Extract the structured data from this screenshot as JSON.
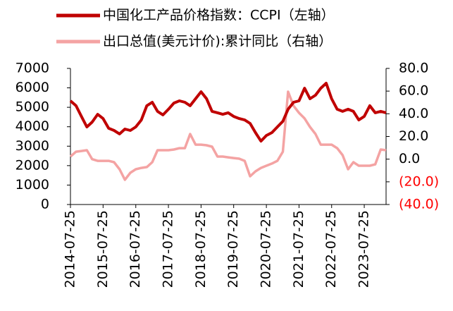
{
  "chart_data": {
    "type": "line",
    "x": [
      "2014-07-25",
      "2014-09-25",
      "2014-11-25",
      "2015-01-25",
      "2015-03-25",
      "2015-05-25",
      "2015-07-25",
      "2015-09-25",
      "2015-11-25",
      "2016-01-25",
      "2016-03-25",
      "2016-05-25",
      "2016-07-25",
      "2016-09-25",
      "2016-11-25",
      "2017-01-25",
      "2017-03-25",
      "2017-05-25",
      "2017-07-25",
      "2017-09-25",
      "2017-11-25",
      "2018-01-25",
      "2018-03-25",
      "2018-05-25",
      "2018-07-25",
      "2018-09-25",
      "2018-11-25",
      "2019-01-25",
      "2019-03-25",
      "2019-05-25",
      "2019-07-25",
      "2019-09-25",
      "2019-11-25",
      "2020-01-25",
      "2020-03-25",
      "2020-05-25",
      "2020-07-25",
      "2020-09-25",
      "2020-11-25",
      "2021-01-25",
      "2021-03-25",
      "2021-05-25",
      "2021-07-25",
      "2021-09-25",
      "2021-11-25",
      "2022-01-25",
      "2022-03-25",
      "2022-05-25",
      "2022-07-25",
      "2022-09-25",
      "2022-11-25",
      "2023-01-25",
      "2023-03-25",
      "2023-05-25",
      "2023-07-25",
      "2023-09-25",
      "2023-11-25",
      "2024-01-25",
      "2024-03-25"
    ],
    "series": [
      {
        "name": "中国化工产品价格指数：CCPI（左轴）",
        "color": "#c00000",
        "axis": "y",
        "values": [
          5330,
          5080,
          4530,
          3990,
          4240,
          4640,
          4420,
          3920,
          3810,
          3630,
          3880,
          3810,
          3990,
          4350,
          5080,
          5260,
          4790,
          4610,
          4900,
          5220,
          5330,
          5260,
          5080,
          5440,
          5800,
          5440,
          4790,
          4720,
          4640,
          4720,
          4530,
          4420,
          4350,
          4170,
          3700,
          3260,
          3550,
          3700,
          3990,
          4280,
          4900,
          5260,
          5330,
          5980,
          5440,
          5620,
          5980,
          6240,
          5440,
          4900,
          4790,
          4900,
          4790,
          4350,
          4530,
          5080,
          4720,
          4790,
          4720
        ]
      },
      {
        "name": "出口总值(美元计价):累计同比（右轴）",
        "color": "#f4a3a3",
        "axis": "y2",
        "values": [
          2.3,
          6.6,
          7.2,
          7.9,
          0,
          -1.5,
          -1.5,
          -1.5,
          -2.7,
          -8.9,
          -18.2,
          -12,
          -8.9,
          -7.7,
          -7,
          -2.7,
          7.9,
          7.9,
          7.9,
          8.5,
          9.7,
          9.7,
          22.2,
          12.8,
          12.8,
          12.2,
          11,
          2.3,
          2.3,
          1.6,
          1,
          0.4,
          -1.5,
          -15.1,
          -10.8,
          -7.7,
          -5.8,
          -3.9,
          -1.5,
          6.6,
          59.5,
          47,
          40.8,
          35.9,
          28.4,
          22.2,
          12.8,
          12.8,
          12.8,
          9.7,
          3.5,
          -8.9,
          -2.7,
          -5.8,
          -5.8,
          -5.8,
          -4.6,
          8.5,
          7.9
        ]
      }
    ],
    "xlim": [
      "2014-07-25",
      "2024-03-25"
    ],
    "xticks": [
      "2014-07-25",
      "2015-07-25",
      "2016-07-25",
      "2017-07-25",
      "2018-07-25",
      "2019-07-25",
      "2020-07-25",
      "2021-07-25",
      "2022-07-25",
      "2023-07-25"
    ],
    "ylim": [
      0,
      7000
    ],
    "yticks": [
      0,
      1000,
      2000,
      3000,
      4000,
      5000,
      6000,
      7000
    ],
    "y2lim": [
      -40,
      80
    ],
    "y2ticks": [
      {
        "value": -40,
        "label": "(40.0)"
      },
      {
        "value": -20,
        "label": "(20.0)"
      },
      {
        "value": 0,
        "label": "0.0"
      },
      {
        "value": 20,
        "label": "20.0"
      },
      {
        "value": 40,
        "label": "40.0"
      },
      {
        "value": 60,
        "label": "60.0"
      },
      {
        "value": 80,
        "label": "80.0"
      }
    ],
    "grid": false
  }
}
